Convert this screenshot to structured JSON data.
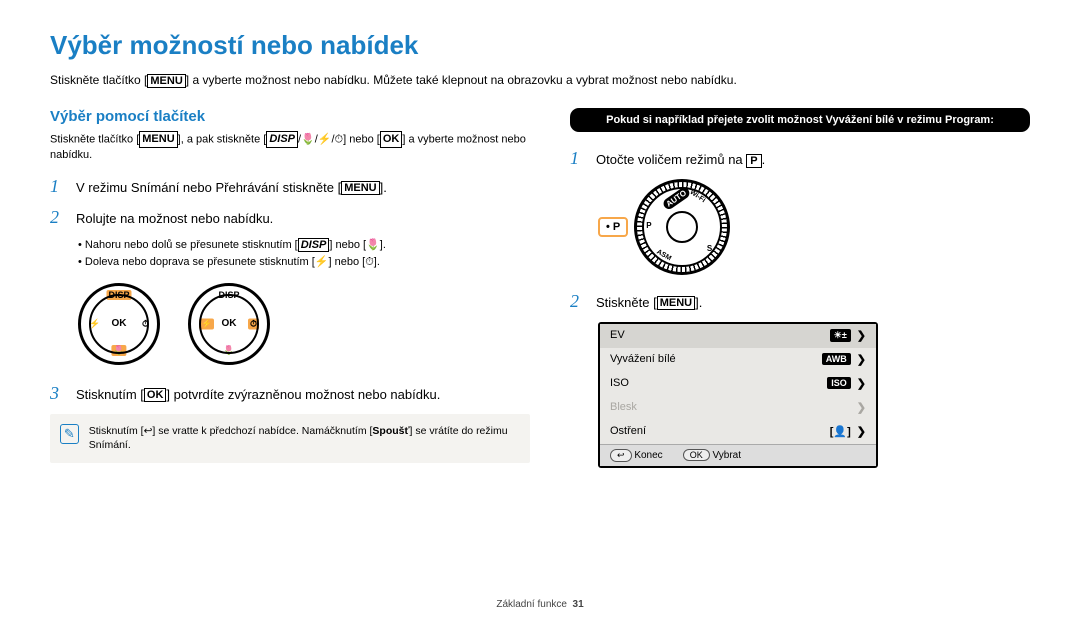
{
  "title": "Výběr možností nebo nabídek",
  "intro_before": "Stiskněte tlačítko [",
  "intro_after": "] a vyberte možnost nebo nabídku. Můžete také klepnout na obrazovku a vybrat možnost nebo nabídku.",
  "section_title": "Výběr pomocí tlačítek",
  "sub_before": "Stiskněte tlačítko [",
  "sub_mid": "], a pak stiskněte [",
  "sub_after": "] a vyberte možnost nebo nabídku.",
  "disp_combo": "/🌷/⚡/⏱",
  "or": "] nebo [",
  "steps_left": {
    "s1_a": "V režimu Snímání nebo Přehrávání stiskněte [",
    "s1_b": "].",
    "s2": "Rolujte na možnost nebo nabídku.",
    "b1_a": "Nahoru nebo dolů se přesunete stisknutím [",
    "b1_b": "] nebo [🌷].",
    "b2_a": "Doleva nebo doprava se přesunete stisknutím [⚡] nebo [⏱].",
    "s3_a": "Stisknutím [",
    "s3_b": "] potvrdíte zvýrazněnou možnost nebo nabídku."
  },
  "note": {
    "a": "Stisknutím [↩] se vratte k předchozí nabídce. Namáčknutím [",
    "shutter": "Spoušť",
    "b": "] se vrátíte do režimu Snímání."
  },
  "blackbar": "Pokud si například přejete zvolit možnost Vyvážení bílé v režimu Program:",
  "right": {
    "s1_a": "Otočte voličem režimů na ",
    "s1_b": ".",
    "s2_a": "Stiskněte [",
    "s2_b": "]."
  },
  "modes": {
    "auto": "AUTO",
    "wifi": "Wi-Fi",
    "p": "P",
    "asm": "ASM",
    "s": "S"
  },
  "dial": {
    "ok": "OK",
    "disp": "DISP",
    "flash": "⚡",
    "flower": "🌷",
    "timer": "⏱"
  },
  "pbox": "• P",
  "menu": {
    "ev": "EV",
    "wb": "Vyvážení bílé",
    "iso": "ISO",
    "flash": "Blesk",
    "focus": "Ostření",
    "ev_ic": "☀±",
    "wb_ic": "AWB",
    "iso_ic": "ISO",
    "focus_ic": "[👤]",
    "back_btn": "↩",
    "back": "Konec",
    "ok_btn": "OK",
    "select": "Vybrat"
  },
  "footer": {
    "label": "Základní funkce",
    "page": "31"
  },
  "labels": {
    "menu": "MENU",
    "disp": "DISP",
    "ok": "OK",
    "p": "P"
  }
}
